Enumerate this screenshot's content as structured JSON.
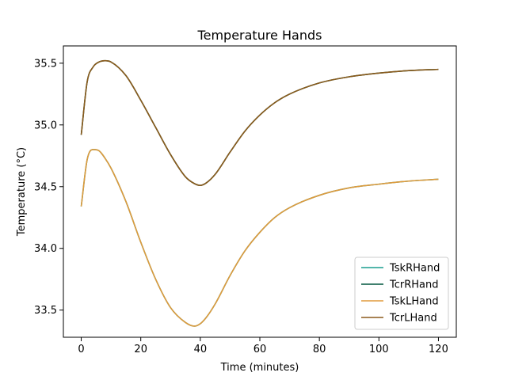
{
  "chart_data": {
    "type": "line",
    "title": "Temperature Hands",
    "xlabel": "Time (minutes)",
    "ylabel": "Temperature (°C)",
    "xlim": [
      -6,
      126
    ],
    "ylim": [
      33.28,
      35.64
    ],
    "xticks": [
      0,
      20,
      40,
      60,
      80,
      100,
      120
    ],
    "yticks": [
      33.5,
      34.0,
      34.5,
      35.0,
      35.5
    ],
    "ytick_labels": [
      "33.5",
      "34.0",
      "34.5",
      "35.0",
      "35.5"
    ],
    "legend_position": "lower-right",
    "grid": false,
    "x": [
      0,
      2,
      4,
      6,
      8,
      10,
      15,
      20,
      25,
      30,
      35,
      38,
      40,
      42,
      45,
      50,
      55,
      60,
      65,
      70,
      80,
      90,
      100,
      110,
      120
    ],
    "series": [
      {
        "name": "TskRHand",
        "color": "#1a9e8f",
        "values": [
          34.34,
          34.72,
          34.8,
          34.79,
          34.73,
          34.65,
          34.38,
          34.05,
          33.75,
          33.52,
          33.4,
          33.37,
          33.39,
          33.44,
          33.55,
          33.78,
          33.98,
          34.13,
          34.25,
          34.33,
          34.43,
          34.49,
          34.52,
          34.545,
          34.56
        ]
      },
      {
        "name": "TcrRHand",
        "color": "#00573f",
        "values": [
          34.92,
          35.35,
          35.47,
          35.51,
          35.52,
          35.51,
          35.4,
          35.2,
          34.98,
          34.76,
          34.58,
          34.525,
          34.51,
          34.53,
          34.6,
          34.78,
          34.95,
          35.08,
          35.18,
          35.25,
          35.34,
          35.39,
          35.42,
          35.44,
          35.45
        ]
      },
      {
        "name": "TskLHand",
        "color": "#e09a3c",
        "values": [
          34.34,
          34.72,
          34.8,
          34.79,
          34.73,
          34.65,
          34.38,
          34.05,
          33.75,
          33.52,
          33.4,
          33.37,
          33.39,
          33.44,
          33.55,
          33.78,
          33.98,
          34.13,
          34.25,
          34.33,
          34.43,
          34.49,
          34.52,
          34.545,
          34.56
        ]
      },
      {
        "name": "TcrLHand",
        "color": "#8b5a1c",
        "values": [
          34.92,
          35.35,
          35.47,
          35.51,
          35.52,
          35.51,
          35.4,
          35.2,
          34.98,
          34.76,
          34.58,
          34.525,
          34.51,
          34.53,
          34.6,
          34.78,
          34.95,
          35.08,
          35.18,
          35.25,
          35.34,
          35.39,
          35.42,
          35.44,
          35.45
        ]
      }
    ]
  }
}
